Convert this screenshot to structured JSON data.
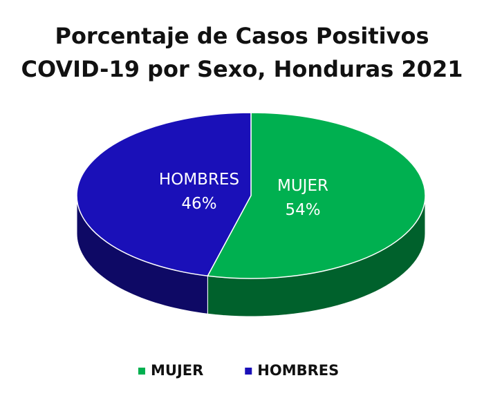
{
  "chart_data": {
    "type": "pie",
    "title": "Porcentaje de Casos Positivos\nCOVID-19 por Sexo, Honduras 2021",
    "categories": [
      "MUJER",
      "HOMBRES"
    ],
    "values": [
      54,
      46
    ],
    "value_labels": [
      "54%",
      "46%"
    ],
    "colors": [
      "#00b050",
      "#1a10b8"
    ],
    "legend": "bottom"
  }
}
